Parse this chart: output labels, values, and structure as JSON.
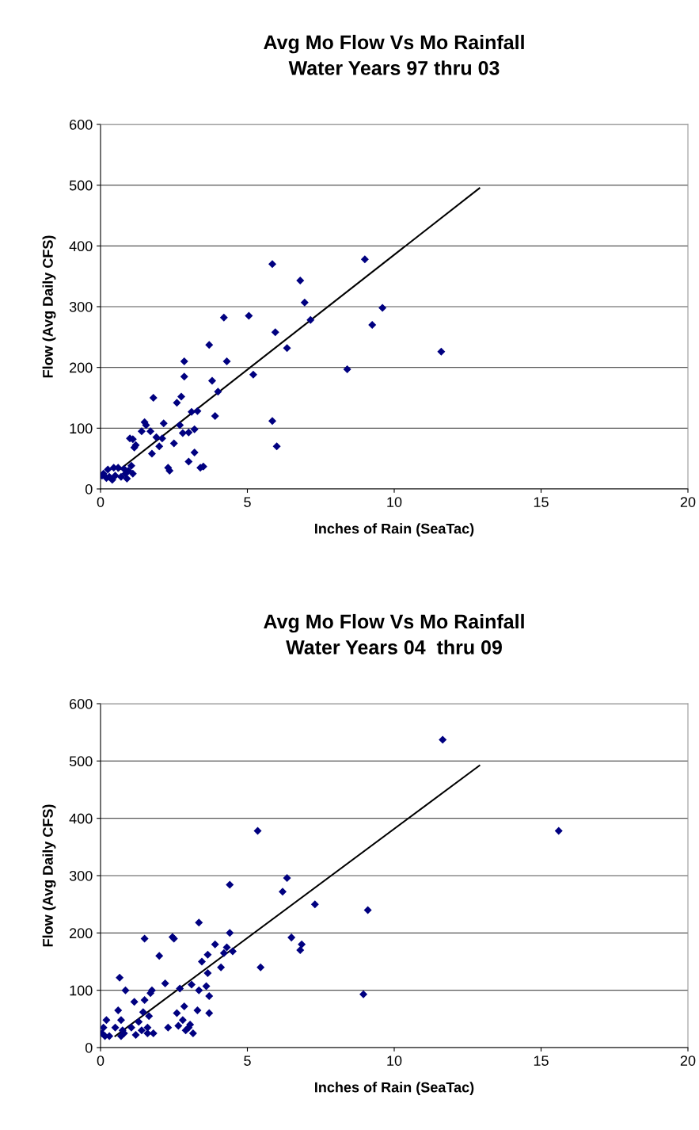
{
  "chart_data": [
    {
      "type": "scatter",
      "title": "Avg Mo Flow Vs Mo Rainfall\nWater Years 97 thru 03",
      "xlabel": "Inches of Rain (SeaTac)",
      "ylabel": "Flow (Avg Daily CFS)",
      "xlim": [
        0,
        20
      ],
      "ylim": [
        0,
        600
      ],
      "xticks": [
        0,
        5,
        10,
        15,
        20
      ],
      "yticks": [
        0,
        100,
        200,
        300,
        400,
        500,
        600
      ],
      "grid": "y",
      "legend": false,
      "series": [
        {
          "marker": "diamond",
          "color": "#000080",
          "x": [
            0.05,
            0.1,
            0.2,
            0.25,
            0.3,
            0.4,
            0.45,
            0.5,
            0.6,
            0.7,
            0.8,
            0.85,
            0.9,
            0.95,
            1.0,
            1.05,
            1.1,
            1.1,
            1.15,
            1.2,
            1.4,
            1.5,
            1.55,
            1.7,
            1.75,
            1.8,
            1.9,
            2.0,
            2.1,
            2.15,
            2.3,
            2.35,
            2.5,
            2.6,
            2.7,
            2.75,
            2.8,
            2.85,
            2.85,
            3.0,
            3.0,
            3.1,
            3.2,
            3.2,
            3.3,
            3.4,
            3.5,
            3.7,
            3.8,
            3.9,
            4.0,
            4.2,
            4.3,
            5.05,
            5.2,
            5.85,
            5.85,
            5.95,
            6.0,
            6.35,
            6.8,
            6.95,
            7.15,
            8.4,
            9.0,
            9.25,
            9.6,
            11.6
          ],
          "values": [
            22,
            25,
            18,
            32,
            20,
            15,
            35,
            22,
            35,
            20,
            33,
            25,
            17,
            30,
            83,
            38,
            25,
            82,
            68,
            72,
            95,
            110,
            105,
            95,
            58,
            150,
            85,
            70,
            83,
            108,
            35,
            30,
            75,
            142,
            105,
            152,
            92,
            210,
            185,
            45,
            93,
            127,
            60,
            98,
            128,
            35,
            37,
            237,
            178,
            120,
            160,
            282,
            210,
            285,
            188,
            112,
            370,
            258,
            70,
            232,
            343,
            307,
            278,
            197,
            378,
            270,
            298,
            226
          ]
        },
        {
          "type": "line",
          "color": "#000000",
          "x": [
            0.6,
            12.9
          ],
          "values": [
            30,
            495
          ]
        }
      ]
    },
    {
      "type": "scatter",
      "title": "Avg Mo Flow Vs Mo Rainfall\nWater Years 04  thru 09",
      "xlabel": "Inches of Rain (SeaTac)",
      "ylabel": "Flow (Avg Daily CFS)",
      "xlim": [
        0,
        20
      ],
      "ylim": [
        0,
        600
      ],
      "xticks": [
        0,
        5,
        10,
        15,
        20
      ],
      "yticks": [
        0,
        100,
        200,
        300,
        400,
        500,
        600
      ],
      "grid": "y",
      "legend": false,
      "series": [
        {
          "marker": "diamond",
          "color": "#000080",
          "x": [
            0.05,
            0.1,
            0.15,
            0.2,
            0.3,
            0.5,
            0.6,
            0.65,
            0.7,
            0.7,
            0.75,
            0.8,
            0.85,
            1.05,
            1.15,
            1.2,
            1.3,
            1.4,
            1.45,
            1.5,
            1.5,
            1.6,
            1.6,
            1.65,
            1.7,
            1.75,
            1.8,
            2.0,
            2.2,
            2.3,
            2.45,
            2.5,
            2.6,
            2.65,
            2.7,
            2.8,
            2.85,
            2.9,
            3.0,
            3.05,
            3.1,
            3.15,
            3.35,
            3.35,
            3.3,
            3.45,
            3.6,
            3.65,
            3.65,
            3.7,
            3.7,
            3.9,
            4.1,
            4.2,
            4.3,
            4.4,
            4.4,
            4.5,
            5.35,
            5.45,
            6.2,
            6.35,
            6.5,
            6.8,
            6.85,
            7.3,
            8.95,
            9.1,
            11.65,
            15.6
          ],
          "values": [
            25,
            35,
            20,
            48,
            20,
            35,
            65,
            122,
            48,
            20,
            30,
            25,
            100,
            35,
            80,
            22,
            45,
            30,
            62,
            190,
            83,
            35,
            25,
            55,
            95,
            100,
            25,
            160,
            112,
            35,
            193,
            190,
            60,
            38,
            103,
            48,
            72,
            30,
            35,
            40,
            110,
            25,
            100,
            218,
            65,
            150,
            107,
            162,
            130,
            90,
            60,
            180,
            140,
            165,
            175,
            284,
            200,
            168,
            378,
            140,
            272,
            296,
            192,
            170,
            180,
            250,
            93,
            240,
            537,
            378
          ]
        },
        {
          "type": "line",
          "color": "#000000",
          "x": [
            0.5,
            12.9
          ],
          "values": [
            20,
            492
          ]
        }
      ]
    }
  ]
}
